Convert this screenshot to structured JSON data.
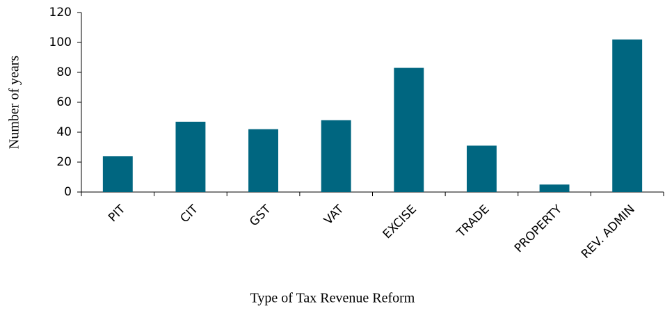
{
  "chart_data": {
    "type": "bar",
    "x_label": "Type of Tax Revenue Reform",
    "y_label": "Number of years",
    "categories": [
      "PIT",
      "CIT",
      "GST",
      "VAT",
      "EXCISE",
      "TRADE",
      "PROPERTY",
      "REV. ADMIN"
    ],
    "values": [
      24,
      47,
      42,
      48,
      83,
      31,
      5,
      102
    ],
    "color": "#006680",
    "ylim": [
      0,
      120
    ],
    "yticks": [
      0,
      20,
      40,
      60,
      80,
      100,
      120
    ],
    "grid": false
  }
}
